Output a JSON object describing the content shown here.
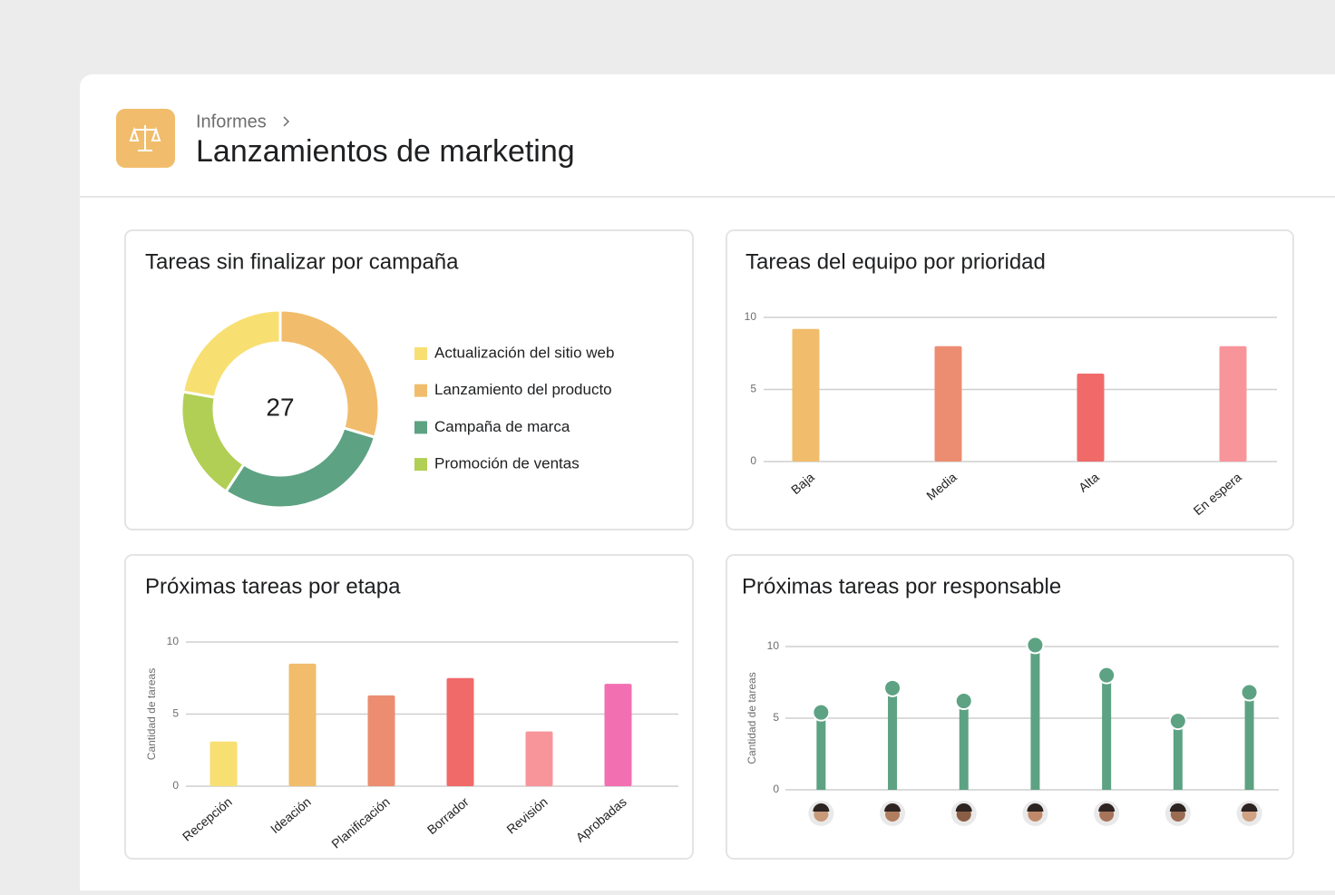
{
  "header": {
    "breadcrumb": "Informes",
    "title": "Lanzamientos de marketing"
  },
  "chart_data": [
    {
      "type": "donut",
      "title": "Tareas sin finalizar por campaña",
      "total": 27,
      "categories": [
        "Actualización del sitio web",
        "Lanzamiento del producto",
        "Campaña de marca",
        "Promoción de ventas"
      ],
      "values": [
        6,
        8,
        8,
        5
      ],
      "colors": [
        "#f8df72",
        "#f1bd6c",
        "#5da283",
        "#b0cf54"
      ]
    },
    {
      "type": "bar",
      "title": "Tareas del equipo por prioridad",
      "categories": [
        "Baja",
        "Media",
        "Alta",
        "En espera"
      ],
      "values": [
        9.2,
        8,
        6.1,
        8
      ],
      "colors": [
        "#f1bd6c",
        "#ec8d71",
        "#f06a6a",
        "#f8959b"
      ],
      "ylim": [
        0,
        10
      ],
      "yticks": [
        0,
        5,
        10
      ],
      "grid": true
    },
    {
      "type": "bar",
      "title": "Próximas tareas por etapa",
      "ylabel": "Cantidad de tareas",
      "categories": [
        "Recepción",
        "Ideación",
        "Planificación",
        "Borrador",
        "Revisión",
        "Aprobadas"
      ],
      "values": [
        3.1,
        8.5,
        6.3,
        7.5,
        3.8,
        7.1
      ],
      "colors": [
        "#f8df72",
        "#f1bd6c",
        "#ec8d71",
        "#f06a6a",
        "#f8959b",
        "#f26fb2"
      ],
      "ylim": [
        0,
        10
      ],
      "yticks": [
        0,
        5,
        10
      ],
      "grid": true
    },
    {
      "type": "lollipop",
      "title": "Próximas tareas por responsable",
      "ylabel": "Cantidad de tareas",
      "categories": [
        null,
        null,
        null,
        null,
        null,
        null,
        null
      ],
      "values": [
        5.4,
        7.1,
        6.2,
        10.1,
        8,
        4.8,
        6.8
      ],
      "color": "#5da283",
      "ylim": [
        0,
        10
      ],
      "yticks": [
        0,
        5,
        10
      ],
      "grid": true
    }
  ]
}
